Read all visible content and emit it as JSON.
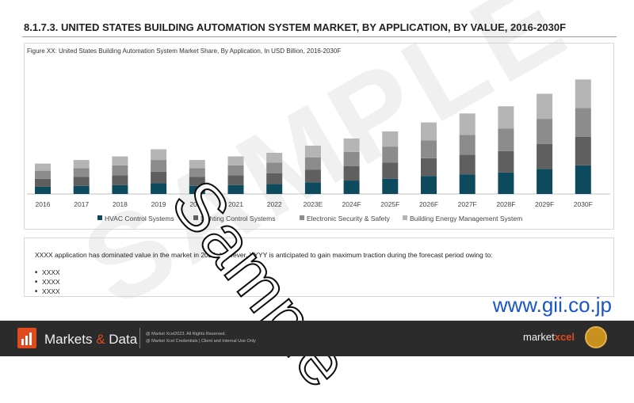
{
  "header": {
    "title_main": "8.1.7.3. UNITED STATES BUILDING AUTOMATION SYSTEM MARKET",
    "title_rest": ", BY APPLICATION, BY VALUE, 2016-2030F",
    "figure_caption": "Figure XX: United States Building Automation System Market Share, By Application, In USD Billion, 2016-2030F"
  },
  "insight": {
    "text": "XXXX application has dominated value in the market in 2022. However, YYYY is anticipated to gain maximum traction during the forecast period owing to:",
    "bullets": [
      "XXXX",
      "XXXX",
      "XXXX"
    ]
  },
  "watermark": {
    "sample": "Sample",
    "background": "SAMPLE",
    "site": "www.gii.co.jp"
  },
  "footer": {
    "brand_left": "Markets ",
    "brand_amp": "&",
    "brand_right": " Data",
    "copyright_line1": "@ Market Xcel2023. All Rights Reserved.",
    "copyright_line2": "@ Market Xcel Credentials | Client and Internal Use Only",
    "logo_left": "market",
    "logo_right": "xcel"
  },
  "colors": {
    "hvac": "#0d4a5e",
    "lighting": "#5f5f5f",
    "security": "#8c8c8c",
    "energy": "#b5b5b5"
  },
  "chart_data": {
    "type": "bar",
    "stacked": true,
    "categories": [
      "2016",
      "2017",
      "2018",
      "2019",
      "2020",
      "2021",
      "2022",
      "2023E",
      "2024F",
      "2025F",
      "2026F",
      "2027F",
      "2028F",
      "2029F",
      "2030F"
    ],
    "series": [
      {
        "name": "HVAC Control Systems",
        "values": [
          0.8,
          0.9,
          1.0,
          1.2,
          0.9,
          1.0,
          1.1,
          1.3,
          1.5,
          1.7,
          2.0,
          2.2,
          2.4,
          2.8,
          3.2
        ]
      },
      {
        "name": "Lighting Control Systems",
        "values": [
          0.9,
          1.0,
          1.1,
          1.3,
          1.0,
          1.1,
          1.2,
          1.4,
          1.6,
          1.8,
          2.0,
          2.2,
          2.4,
          2.8,
          3.2
        ]
      },
      {
        "name": "Electronic Security & Safety",
        "values": [
          0.9,
          1.0,
          1.1,
          1.3,
          1.0,
          1.1,
          1.2,
          1.4,
          1.6,
          1.8,
          2.0,
          2.2,
          2.5,
          2.8,
          3.2
        ]
      },
      {
        "name": "Building Energy Management System",
        "values": [
          0.8,
          0.9,
          1.0,
          1.2,
          0.9,
          1.0,
          1.1,
          1.3,
          1.5,
          1.7,
          2.0,
          2.4,
          2.5,
          2.8,
          3.2
        ]
      }
    ],
    "legend": "bottom",
    "grid": false
  }
}
